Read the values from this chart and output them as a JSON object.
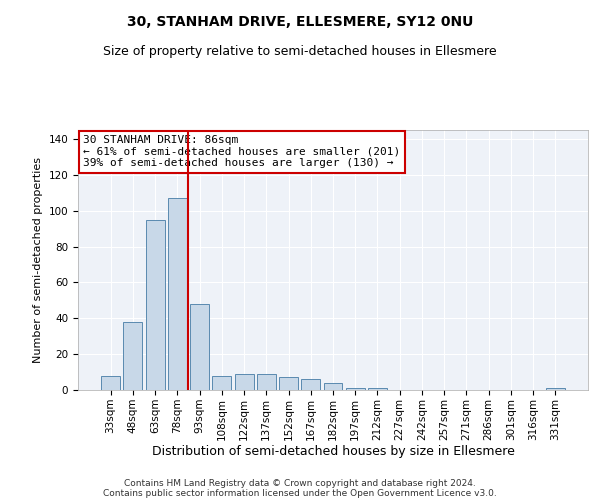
{
  "title": "30, STANHAM DRIVE, ELLESMERE, SY12 0NU",
  "subtitle": "Size of property relative to semi-detached houses in Ellesmere",
  "xlabel": "Distribution of semi-detached houses by size in Ellesmere",
  "ylabel": "Number of semi-detached properties",
  "categories": [
    "33sqm",
    "48sqm",
    "63sqm",
    "78sqm",
    "93sqm",
    "108sqm",
    "122sqm",
    "137sqm",
    "152sqm",
    "167sqm",
    "182sqm",
    "197sqm",
    "212sqm",
    "227sqm",
    "242sqm",
    "257sqm",
    "271sqm",
    "286sqm",
    "301sqm",
    "316sqm",
    "331sqm"
  ],
  "values": [
    8,
    38,
    95,
    107,
    48,
    8,
    9,
    9,
    7,
    6,
    4,
    1,
    1,
    0,
    0,
    0,
    0,
    0,
    0,
    0,
    1
  ],
  "bar_color": "#c8d8e8",
  "bar_edge_color": "#5a8ab0",
  "vline_x": 3.5,
  "vline_color": "#cc0000",
  "annotation_text": "30 STANHAM DRIVE: 86sqm\n← 61% of semi-detached houses are smaller (201)\n39% of semi-detached houses are larger (130) →",
  "annotation_box_color": "#ffffff",
  "annotation_box_edge_color": "#cc0000",
  "ylim": [
    0,
    145
  ],
  "yticks": [
    0,
    20,
    40,
    60,
    80,
    100,
    120,
    140
  ],
  "background_color": "#eef2f8",
  "footer_line1": "Contains HM Land Registry data © Crown copyright and database right 2024.",
  "footer_line2": "Contains public sector information licensed under the Open Government Licence v3.0.",
  "title_fontsize": 10,
  "subtitle_fontsize": 9,
  "xlabel_fontsize": 9,
  "ylabel_fontsize": 8,
  "tick_fontsize": 7.5,
  "annotation_fontsize": 8,
  "footer_fontsize": 6.5
}
